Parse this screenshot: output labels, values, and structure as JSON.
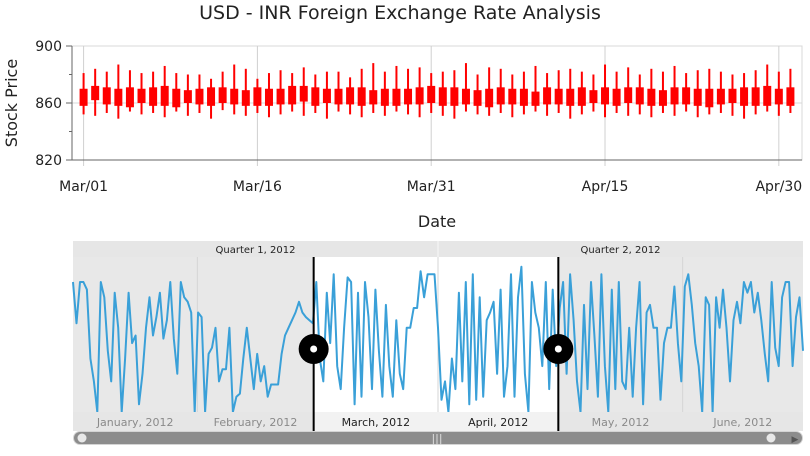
{
  "chart_title": "USD - INR Foreign Exchange Rate Analysis",
  "colors": {
    "candle": "#ff0000",
    "navigator_line": "#3aa0d8",
    "navigator_bg": "#e8e8e8",
    "selection_bg": "#ffffff",
    "thumb": "#000000",
    "scrollbar_track": "#d4d4d4",
    "scrollbar_thumb": "#8c8c8c"
  },
  "chart_data": {
    "type": "candlestick",
    "title": "USD - INR Foreign Exchange Rate Analysis",
    "xlabel": "Date",
    "ylabel": "Stock Price",
    "ylim": [
      820,
      900
    ],
    "yticks": [
      "820",
      "860",
      "900"
    ],
    "xticks": [
      "Mar/01",
      "Mar/16",
      "Mar/31",
      "Apr/15",
      "Apr/30"
    ],
    "xrange": [
      "2012-02-29",
      "2012-05-02"
    ],
    "grid": true,
    "series": [
      {
        "x": [
          "2012-03-01",
          "2012-03-02",
          "2012-03-03",
          "2012-03-04",
          "2012-03-05",
          "2012-03-06",
          "2012-03-07",
          "2012-03-08",
          "2012-03-09",
          "2012-03-10",
          "2012-03-11",
          "2012-03-12",
          "2012-03-13",
          "2012-03-14",
          "2012-03-15",
          "2012-03-16",
          "2012-03-17",
          "2012-03-18",
          "2012-03-19",
          "2012-03-20",
          "2012-03-21",
          "2012-03-22",
          "2012-03-23",
          "2012-03-24",
          "2012-03-25",
          "2012-03-26",
          "2012-03-27",
          "2012-03-28",
          "2012-03-29",
          "2012-03-30",
          "2012-03-31",
          "2012-04-01",
          "2012-04-02",
          "2012-04-03",
          "2012-04-04",
          "2012-04-05",
          "2012-04-06",
          "2012-04-07",
          "2012-04-08",
          "2012-04-09",
          "2012-04-10",
          "2012-04-11",
          "2012-04-12",
          "2012-04-13",
          "2012-04-14",
          "2012-04-15",
          "2012-04-16",
          "2012-04-17",
          "2012-04-18",
          "2012-04-19",
          "2012-04-20",
          "2012-04-21",
          "2012-04-22",
          "2012-04-23",
          "2012-04-24",
          "2012-04-25",
          "2012-04-26",
          "2012-04-27",
          "2012-04-28",
          "2012-04-29",
          "2012-04-30",
          "2012-05-01"
        ],
        "high": [
          881,
          884,
          882,
          887,
          883,
          881,
          882,
          886,
          881,
          880,
          880,
          877,
          882,
          887,
          884,
          877,
          881,
          883,
          881,
          885,
          880,
          882,
          882,
          878,
          884,
          888,
          882,
          886,
          884,
          885,
          881,
          882,
          883,
          888,
          880,
          885,
          884,
          880,
          882,
          886,
          881,
          883,
          884,
          882,
          880,
          887,
          882,
          885,
          880,
          884,
          882,
          886,
          881,
          883,
          884,
          882,
          880,
          881,
          883,
          887,
          882,
          884
        ],
        "open": [
          870,
          862,
          871,
          858,
          871,
          860,
          871,
          858,
          870,
          869,
          859,
          871,
          860,
          870,
          869,
          858,
          870,
          859,
          872,
          861,
          871,
          860,
          870,
          859,
          871,
          869,
          858,
          870,
          859,
          871,
          860,
          871,
          858,
          870,
          869,
          857,
          871,
          859,
          870,
          868,
          859,
          870,
          858,
          871,
          869,
          859,
          870,
          860,
          871,
          858,
          869,
          871,
          859,
          870,
          857,
          870,
          860,
          871,
          858,
          872,
          859,
          871
        ],
        "close": [
          858,
          872,
          859,
          870,
          857,
          870,
          858,
          872,
          857,
          860,
          870,
          858,
          871,
          859,
          858,
          871,
          858,
          870,
          859,
          872,
          858,
          870,
          859,
          871,
          858,
          859,
          870,
          858,
          870,
          859,
          872,
          858,
          871,
          859,
          858,
          870,
          859,
          870,
          858,
          858,
          871,
          859,
          870,
          858,
          860,
          871,
          858,
          871,
          859,
          870,
          858,
          859,
          871,
          858,
          870,
          859,
          870,
          858,
          871,
          858,
          870,
          858
        ],
        "low": [
          852,
          851,
          853,
          849,
          854,
          852,
          853,
          850,
          854,
          851,
          853,
          849,
          855,
          852,
          851,
          853,
          850,
          852,
          854,
          851,
          853,
          849,
          854,
          852,
          850,
          853,
          851,
          854,
          852,
          850,
          853,
          851,
          849,
          854,
          852,
          851,
          853,
          850,
          852,
          854,
          851,
          853,
          849,
          852,
          854,
          850,
          853,
          851,
          852,
          850,
          853,
          851,
          854,
          850,
          852,
          853,
          851,
          849,
          852,
          854,
          851,
          853
        ]
      }
    ]
  },
  "navigator": {
    "quarter_labels": [
      "Quarter 1, 2012",
      "Quarter 2, 2012"
    ],
    "month_labels": [
      "January, 2012",
      "February, 2012",
      "March, 2012",
      "April, 2012",
      "May, 2012",
      "June, 2012"
    ],
    "selected_range": [
      "2012-03-01",
      "2012-05-01"
    ],
    "series": [
      0.85,
      0.58,
      0.85,
      0.85,
      0.8,
      0.35,
      0.2,
      0.0,
      0.85,
      0.75,
      0.4,
      0.2,
      0.78,
      0.55,
      0.0,
      0.35,
      0.78,
      0.45,
      0.5,
      0.05,
      0.25,
      0.55,
      0.75,
      0.5,
      0.62,
      0.78,
      0.48,
      0.6,
      0.85,
      0.48,
      0.25,
      0.85,
      0.75,
      0.72,
      0.65,
      0.0,
      0.65,
      0.62,
      0.0,
      0.38,
      0.42,
      0.55,
      0.2,
      0.28,
      0.28,
      0.55,
      0.0,
      0.1,
      0.12,
      0.35,
      0.55,
      0.35,
      0.15,
      0.38,
      0.2,
      0.3,
      0.1,
      0.18,
      0.18,
      0.18,
      0.38,
      0.5,
      0.55,
      0.6,
      0.65,
      0.72,
      0.65,
      0.62,
      0.6,
      0.58,
      0.85,
      0.35,
      0.2,
      0.78,
      0.45,
      0.9,
      0.3,
      0.15,
      0.55,
      0.88,
      0.85,
      0.05,
      0.78,
      0.1,
      0.85,
      0.62,
      0.15,
      0.8,
      0.4,
      0.1,
      0.7,
      0.3,
      0.1,
      0.6,
      0.25,
      0.15,
      0.55,
      0.55,
      0.68,
      0.68,
      0.92,
      0.75,
      0.9,
      0.9,
      0.9,
      0.55,
      0.08,
      0.2,
      0.0,
      0.35,
      0.15,
      0.78,
      0.2,
      0.85,
      0.05,
      0.9,
      0.08,
      0.75,
      0.1,
      0.6,
      0.65,
      0.72,
      0.25,
      0.8,
      0.1,
      0.3,
      0.9,
      0.1,
      0.75,
      0.95,
      0.25,
      0.0,
      0.85,
      0.65,
      0.55,
      0.3,
      0.85,
      0.15,
      0.8,
      0.3,
      0.68,
      0.85,
      0.25,
      0.9,
      0.6,
      0.2,
      0.0,
      0.7,
      0.15,
      0.85,
      0.5,
      0.1,
      0.9,
      0.3,
      0.0,
      0.8,
      0.15,
      0.85,
      0.2,
      0.15,
      0.55,
      0.1,
      0.55,
      0.85,
      0.05,
      0.65,
      0.7,
      0.55,
      0.55,
      0.08,
      0.45,
      0.55,
      0.55,
      0.82,
      0.45,
      0.2,
      0.82,
      0.9,
      0.7,
      0.45,
      0.3,
      0.0,
      0.75,
      0.7,
      0.0,
      0.75,
      0.55,
      0.8,
      0.55,
      0.2,
      0.6,
      0.72,
      0.58,
      0.85,
      0.78,
      0.85,
      0.65,
      0.78,
      0.6,
      0.38,
      0.2,
      0.85,
      0.42,
      0.3,
      0.75,
      0.85,
      0.85,
      0.3,
      0.62,
      0.75,
      0.4
    ]
  },
  "scrollbar": {
    "left_arrow": "◀",
    "right_arrow": "▶",
    "grip": "|||"
  }
}
